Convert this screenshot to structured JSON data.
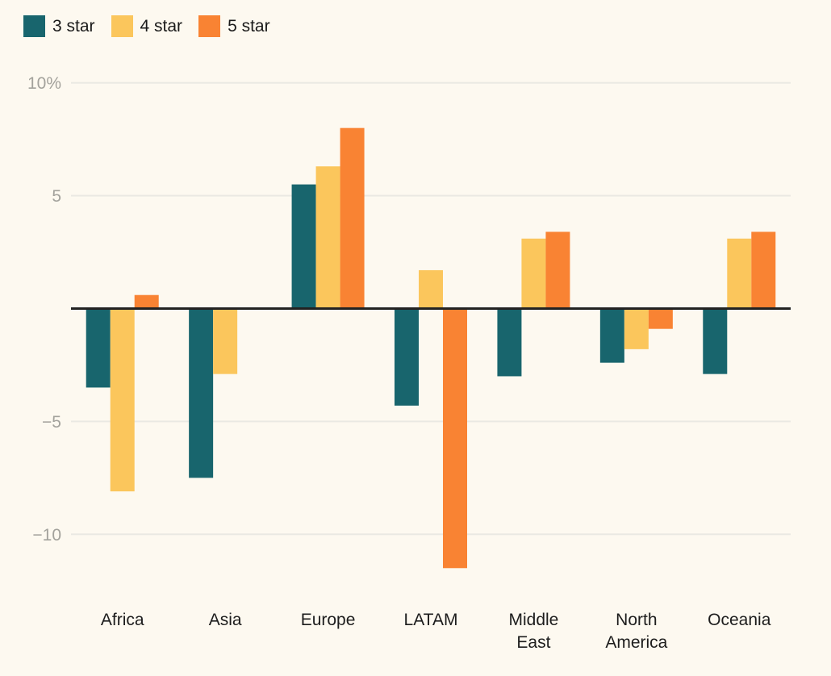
{
  "chart_data": {
    "type": "bar",
    "title": "",
    "unit": "%",
    "categories": [
      "Africa",
      "Asia",
      "Europe",
      "LATAM",
      "Middle East",
      "North America",
      "Oceania"
    ],
    "series": [
      {
        "name": "3 star",
        "color": "#18656D",
        "values": [
          -3.5,
          -7.5,
          5.5,
          -4.3,
          -3.0,
          -2.4,
          -2.9
        ]
      },
      {
        "name": "4 star",
        "color": "#FBC65C",
        "values": [
          -8.1,
          -2.9,
          6.3,
          1.7,
          3.1,
          -1.8,
          3.1
        ]
      },
      {
        "name": "5 star",
        "color": "#F98333",
        "values": [
          0.6,
          0,
          8.0,
          -11.5,
          3.4,
          -0.9,
          3.4
        ]
      }
    ],
    "y_ticks": [
      {
        "value": 10,
        "label": "10%"
      },
      {
        "value": 5,
        "label": "5"
      },
      {
        "value": -5,
        "label": "−5"
      },
      {
        "value": -10,
        "label": "−10"
      }
    ],
    "ylim": [
      -12.5,
      10.8
    ],
    "grid": "horizontal",
    "legend_position": "top-left",
    "colors": {
      "background": "#FDF9F0",
      "gridline": "#EAE9E3",
      "axis_line": "#222222",
      "tick_label": "#A3A29C",
      "category_label": "#1D1D1D"
    }
  }
}
